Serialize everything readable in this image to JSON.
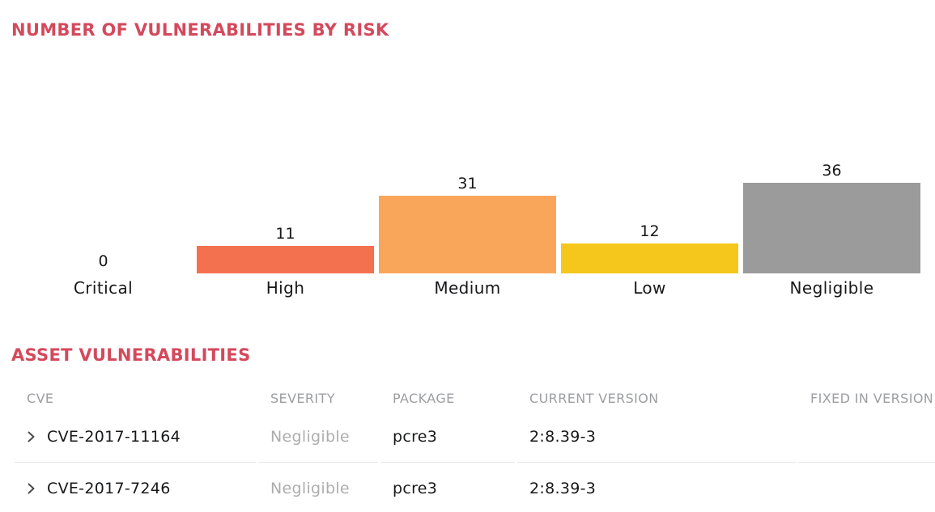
{
  "chart_section": {
    "title": "NUMBER OF VULNERABILITIES BY RISK"
  },
  "chart_data": {
    "type": "bar",
    "title": "NUMBER OF VULNERABILITIES BY RISK",
    "categories": [
      "Critical",
      "High",
      "Medium",
      "Low",
      "Negligible"
    ],
    "values": [
      0,
      11,
      31,
      12,
      36
    ],
    "bar_colors": [
      null,
      "#F4714F",
      "#FAA65A",
      "#F5C71D",
      "#9B9B9B"
    ],
    "xlabel": "",
    "ylabel": "",
    "ylim": [
      0,
      36
    ],
    "grid": false,
    "legend": "none",
    "axes_hidden": true,
    "value_labels_shown": true
  },
  "table_section": {
    "title": "ASSET VULNERABILITIES",
    "columns": [
      "CVE",
      "SEVERITY",
      "PACKAGE",
      "CURRENT VERSION",
      "FIXED IN VERSION"
    ],
    "rows": [
      {
        "cve": "CVE-2017-11164",
        "severity": "Negligible",
        "package": "pcre3",
        "current_version": "2:8.39-3",
        "fixed_in_version": ""
      },
      {
        "cve": "CVE-2017-7246",
        "severity": "Negligible",
        "package": "pcre3",
        "current_version": "2:8.39-3",
        "fixed_in_version": ""
      }
    ]
  },
  "colors": {
    "section_title": "#D4495C",
    "table_header_text": "#9C9EA1",
    "severity_negligible_text": "#ADADAD",
    "body_text": "#17181A",
    "divider": "#E7E7E7",
    "background": "#FFFFFF"
  }
}
